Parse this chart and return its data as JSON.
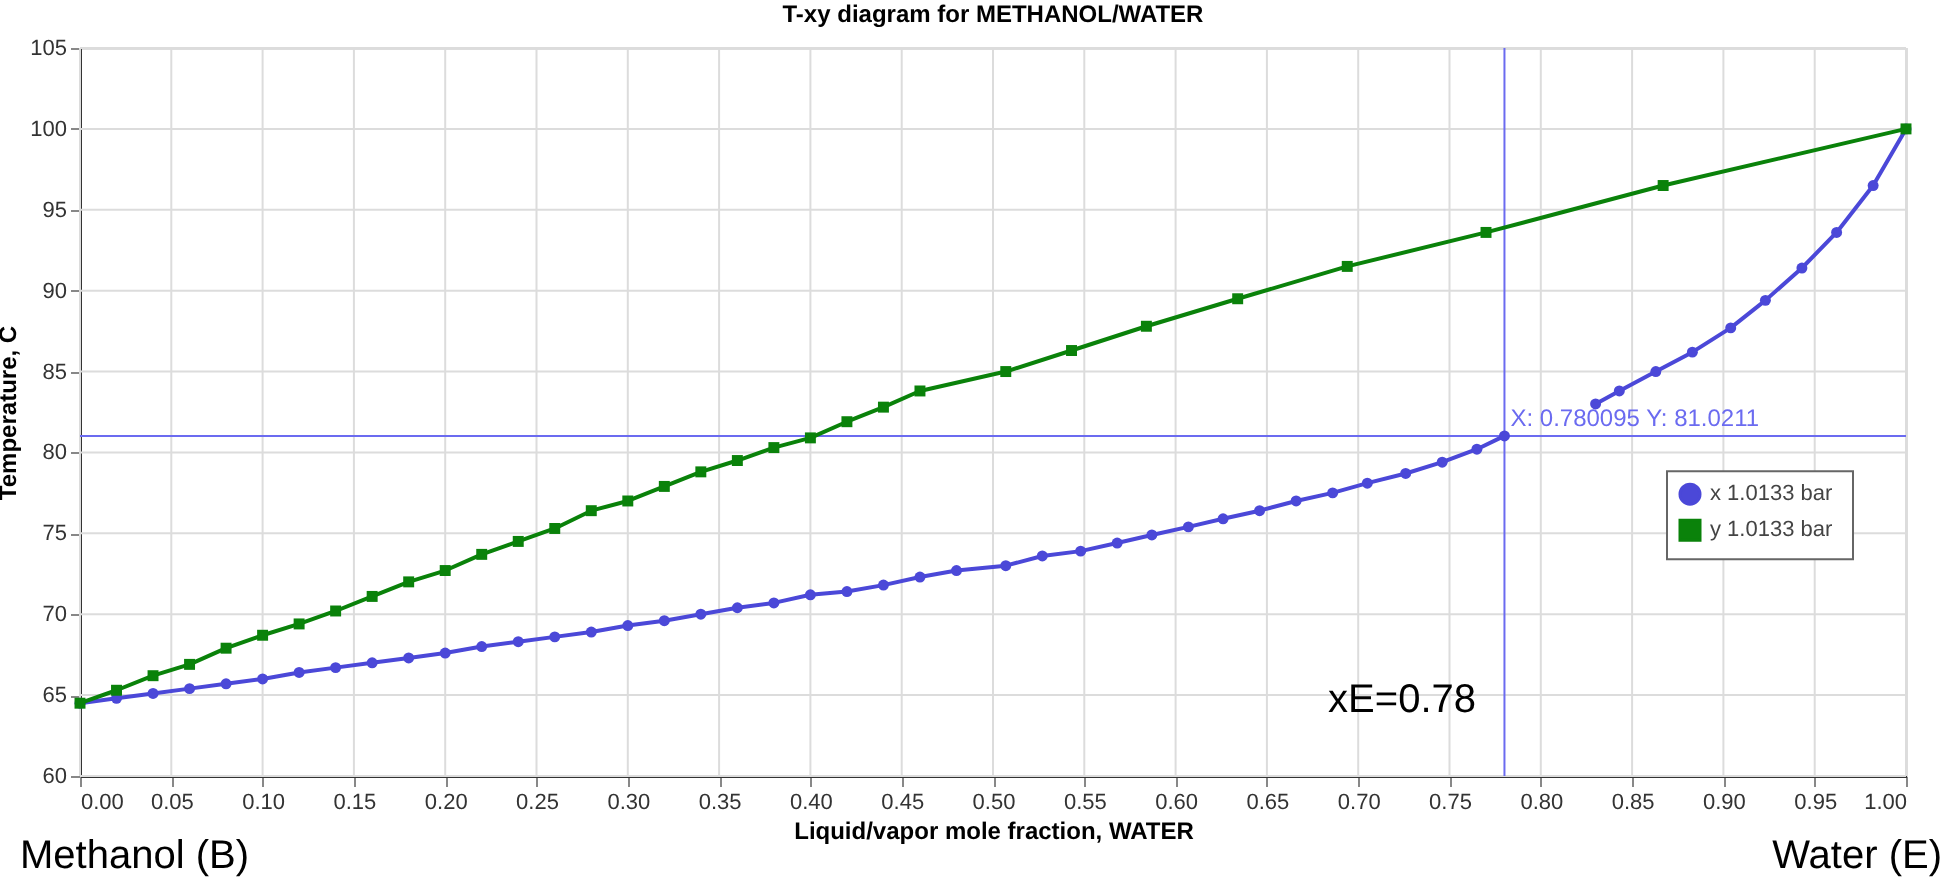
{
  "chart_data": {
    "type": "line",
    "title": "T-xy diagram for METHANOL/WATER",
    "xlabel": "Liquid/vapor mole fraction, WATER",
    "ylabel": "Temperature, C",
    "xlim": [
      0,
      1
    ],
    "ylim": [
      60,
      105
    ],
    "xticks": [
      {
        "value": 0,
        "label": "0.00"
      },
      {
        "value": 0.05,
        "label": "0.05"
      },
      {
        "value": 0.1,
        "label": "0.10"
      },
      {
        "value": 0.15,
        "label": "0.15"
      },
      {
        "value": 0.2,
        "label": "0.20"
      },
      {
        "value": 0.25,
        "label": "0.25"
      },
      {
        "value": 0.3,
        "label": "0.30"
      },
      {
        "value": 0.35,
        "label": "0.35"
      },
      {
        "value": 0.4,
        "label": "0.40"
      },
      {
        "value": 0.45,
        "label": "0.45"
      },
      {
        "value": 0.5,
        "label": "0.50"
      },
      {
        "value": 0.55,
        "label": "0.55"
      },
      {
        "value": 0.6,
        "label": "0.60"
      },
      {
        "value": 0.65,
        "label": "0.65"
      },
      {
        "value": 0.7,
        "label": "0.70"
      },
      {
        "value": 0.75,
        "label": "0.75"
      },
      {
        "value": 0.8,
        "label": "0.80"
      },
      {
        "value": 0.85,
        "label": "0.85"
      },
      {
        "value": 0.9,
        "label": "0.90"
      },
      {
        "value": 0.95,
        "label": "0.95"
      },
      {
        "value": 1,
        "label": "1.00"
      }
    ],
    "yticks": [
      60,
      65,
      70,
      75,
      80,
      85,
      90,
      95,
      100,
      105
    ],
    "grid": true,
    "legend": "right",
    "line_style": "solid",
    "series": [
      {
        "name": "x  1.0133 bar",
        "color": "#4b48d8",
        "marker": "circle",
        "x": [
          0,
          0.02,
          0.04,
          0.06,
          0.08,
          0.1,
          0.12,
          0.14,
          0.16,
          0.18,
          0.2,
          0.22,
          0.24,
          0.26,
          0.28,
          0.3,
          0.32,
          0.34,
          0.36,
          0.38,
          0.4,
          0.42,
          0.44,
          0.46,
          0.48,
          0.507,
          0.527,
          0.548,
          0.568,
          0.587,
          0.607,
          0.626,
          0.646,
          0.666,
          0.686,
          0.705,
          0.726,
          0.746,
          0.765,
          0.780095,
          0.8,
          0.83,
          0.843,
          0.863,
          0.883,
          0.904,
          0.923,
          0.943,
          0.962,
          0.982,
          1.0
        ],
        "values": [
          64.5,
          64.8,
          65.1,
          65.4,
          65.7,
          66.0,
          66.4,
          66.7,
          67.0,
          67.3,
          67.6,
          68.0,
          68.3,
          68.6,
          68.9,
          69.3,
          69.6,
          70.0,
          70.4,
          70.7,
          71.2,
          71.4,
          71.8,
          72.3,
          72.7,
          73.0,
          73.6,
          73.9,
          74.4,
          74.9,
          75.4,
          75.9,
          76.4,
          77.0,
          77.5,
          78.1,
          78.7,
          79.4,
          80.2,
          81.0211,
          null,
          83.0,
          83.8,
          85.0,
          86.2,
          87.7,
          89.4,
          91.4,
          93.6,
          96.5,
          100.0
        ]
      },
      {
        "name": "y  1.0133 bar",
        "color": "#0a820a",
        "marker": "square",
        "x": [
          0,
          0.02,
          0.04,
          0.06,
          0.08,
          0.1,
          0.12,
          0.14,
          0.16,
          0.18,
          0.2,
          0.22,
          0.24,
          0.26,
          0.28,
          0.3,
          0.32,
          0.34,
          0.36,
          0.38,
          0.4,
          0.42,
          0.44,
          0.46,
          0.507,
          0.543,
          0.584,
          0.634,
          0.694,
          0.77,
          0.867,
          1.0
        ],
        "values": [
          64.5,
          65.3,
          66.2,
          66.9,
          67.9,
          68.7,
          69.4,
          70.2,
          71.1,
          72.0,
          72.7,
          73.7,
          74.5,
          75.3,
          76.4,
          77.0,
          77.9,
          78.8,
          79.5,
          80.3,
          80.9,
          81.9,
          82.8,
          83.8,
          85.0,
          86.3,
          87.8,
          89.5,
          91.5,
          93.6,
          96.5,
          100.0
        ]
      }
    ],
    "ref_lines": [
      {
        "axis": "x",
        "value": 0.780095,
        "color": "#6b6bf0"
      },
      {
        "axis": "y",
        "value": 81.0211,
        "color": "#6b6bf0"
      }
    ],
    "annotations": [
      {
        "text": "X: 0.780095 Y: 81.0211",
        "x": 0.780095,
        "y": 81.0211
      },
      "xE=0.78",
      "Methanol (B)",
      "Water (E)"
    ]
  }
}
